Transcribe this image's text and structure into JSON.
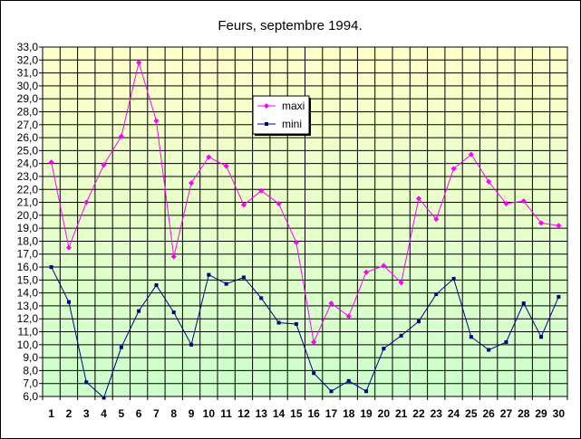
{
  "chart_data": {
    "type": "line",
    "title": "Feurs, septembre 1994.",
    "xlabel": "",
    "ylabel": "",
    "categories": [
      "1",
      "2",
      "3",
      "4",
      "5",
      "6",
      "7",
      "8",
      "9",
      "10",
      "11",
      "12",
      "13",
      "14",
      "15",
      "16",
      "17",
      "18",
      "19",
      "20",
      "21",
      "22",
      "23",
      "24",
      "25",
      "26",
      "27",
      "28",
      "29",
      "30"
    ],
    "ylim": [
      6.0,
      33.0
    ],
    "ystep": 1.0,
    "grid": true,
    "legend": "upper-middle",
    "background": {
      "top": "#ffffc8",
      "bottom": "#ccffcc"
    },
    "series": [
      {
        "name": "maxi",
        "color": "#ff00ff",
        "marker": "diamond",
        "values": [
          24.1,
          17.5,
          21.0,
          23.9,
          26.1,
          31.8,
          27.3,
          16.8,
          22.5,
          24.5,
          23.8,
          20.8,
          21.9,
          20.9,
          17.9,
          10.2,
          13.2,
          12.2,
          15.6,
          16.1,
          14.8,
          21.3,
          19.7,
          23.6,
          24.7,
          22.6,
          20.9,
          21.1,
          19.4,
          19.2
        ]
      },
      {
        "name": "mini",
        "color": "#000080",
        "marker": "square",
        "values": [
          16.0,
          13.3,
          7.1,
          5.9,
          9.8,
          12.6,
          14.6,
          12.5,
          10.0,
          15.4,
          14.7,
          15.2,
          13.6,
          11.7,
          11.6,
          7.8,
          6.4,
          7.2,
          6.4,
          9.7,
          10.7,
          11.8,
          13.9,
          15.1,
          10.6,
          9.6,
          10.2,
          13.2,
          10.6,
          13.7
        ]
      }
    ]
  }
}
